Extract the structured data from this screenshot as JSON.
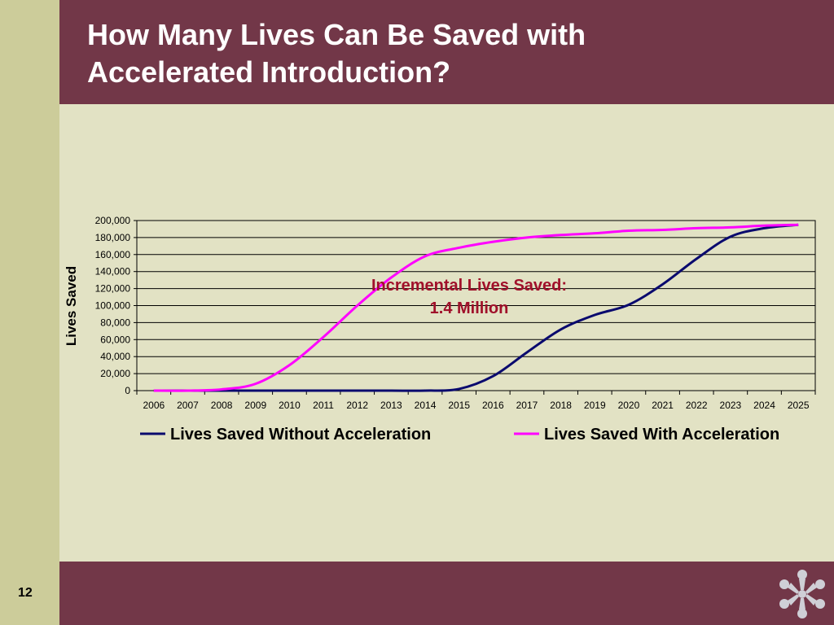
{
  "slide": {
    "title_line1": "How Many Lives Can Be Saved with",
    "title_line2": "Accelerated Introduction?",
    "page_number": "12",
    "colors": {
      "header": "#723748",
      "background": "#e2e2c4",
      "strip": "#cccc9a"
    },
    "logo_icon": "snowflake-people-logo"
  },
  "chart_data": {
    "type": "line",
    "title": "",
    "xlabel": "",
    "ylabel": "Lives Saved",
    "categories": [
      "2006",
      "2007",
      "2008",
      "2009",
      "2010",
      "2011",
      "2012",
      "2013",
      "2014",
      "2015",
      "2016",
      "2017",
      "2018",
      "2019",
      "2020",
      "2021",
      "2022",
      "2023",
      "2024",
      "2025"
    ],
    "ylim": [
      0,
      200000
    ],
    "yticks": [
      "0",
      "20,000",
      "40,000",
      "60,000",
      "80,000",
      "100,000",
      "120,000",
      "140,000",
      "160,000",
      "180,000",
      "200,000"
    ],
    "grid": true,
    "legend_position": "bottom",
    "series": [
      {
        "name": "Lives Saved Without Acceleration",
        "color": "#0a0a6e",
        "values": [
          0,
          0,
          0,
          0,
          0,
          0,
          0,
          0,
          0,
          2000,
          17000,
          45000,
          72000,
          89000,
          101000,
          125000,
          155000,
          181000,
          191000,
          195000
        ]
      },
      {
        "name": "Lives Saved With Acceleration",
        "color": "#ff00ff",
        "values": [
          0,
          0,
          1500,
          8000,
          30000,
          63000,
          100000,
          133000,
          158000,
          168000,
          175000,
          180000,
          183000,
          185000,
          188000,
          189000,
          191000,
          192000,
          194000,
          195000
        ]
      }
    ],
    "annotation": {
      "line1": "Incremental Lives Saved:",
      "line2": "1.4 Million"
    }
  }
}
